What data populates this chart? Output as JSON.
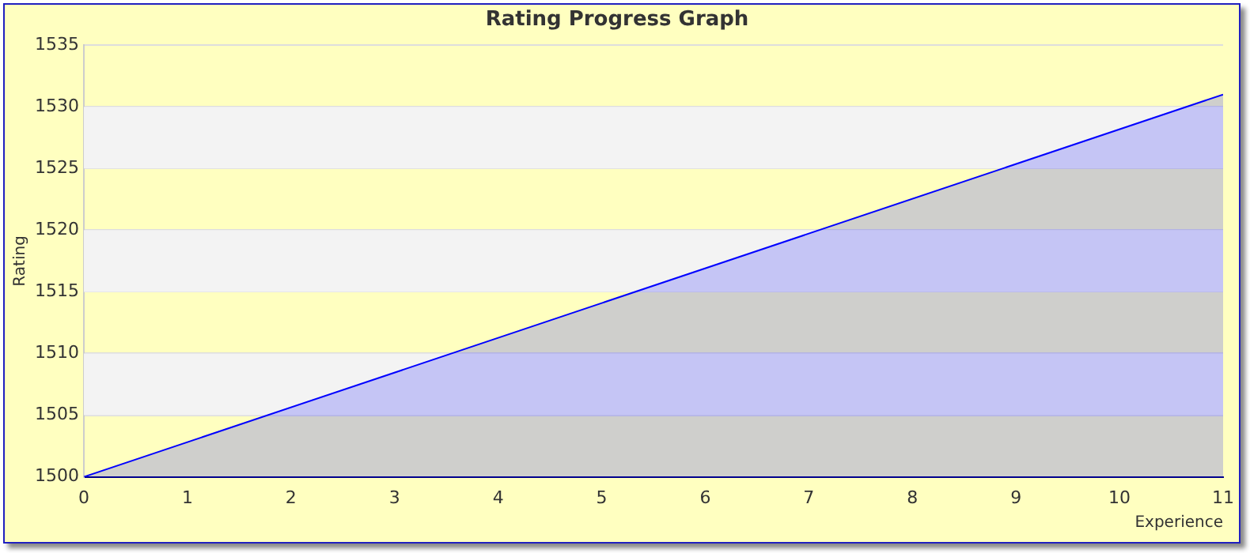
{
  "chart_data": {
    "type": "area",
    "title": "Rating Progress Graph",
    "xlabel": "Experience",
    "ylabel": "Rating",
    "x": [
      0,
      11
    ],
    "series": [
      {
        "color": "#0000ff",
        "values": [
          1500,
          1531
        ]
      }
    ],
    "xlim": [
      0,
      11
    ],
    "xticks": [
      0,
      1,
      2,
      3,
      4,
      5,
      6,
      7,
      8,
      9,
      10,
      11
    ],
    "ylim": [
      1500,
      1535
    ],
    "yticks": [
      1500,
      1505,
      1510,
      1515,
      1520,
      1525,
      1530,
      1535
    ],
    "grid": "y",
    "legend": false
  }
}
